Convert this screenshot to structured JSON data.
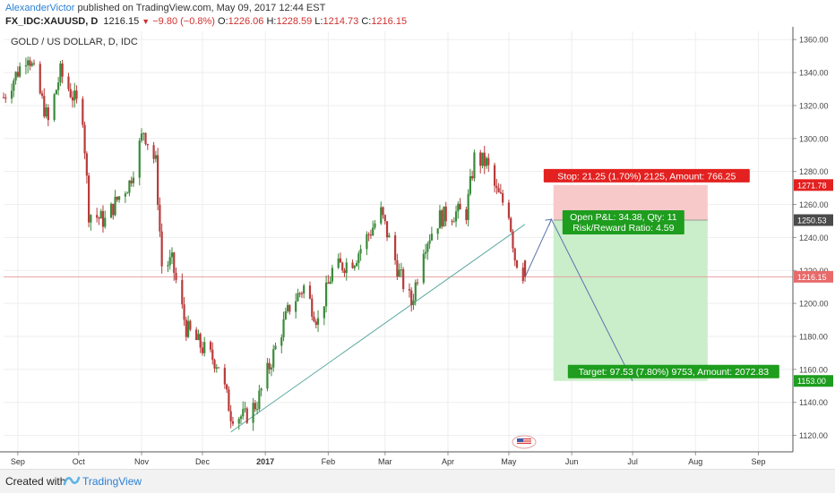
{
  "header": {
    "author": "AlexanderVictor",
    "published_text": "published on TradingView.com, May 09, 2017 12:44 EST",
    "symbol": "FX_IDC:XAUUSD, D",
    "last_price": "1216.15",
    "change": "−9.80 (−0.8%)",
    "open_label": "O:",
    "open_value": "1226.06",
    "high_label": "H:",
    "high_value": "1228.59",
    "low_label": "L:",
    "low_value": "1214.73",
    "close_label": "C:",
    "close_value": "1216.15"
  },
  "footer": {
    "created_with": "Created with",
    "brand": "TradingView"
  },
  "colors": {
    "up": "#3a8a3a",
    "down": "#b83b3b",
    "trendline": "#5aa89e",
    "arrow": "#5d74ad",
    "stop_zone": "#f8c9c9",
    "target_zone": "#c9eec9",
    "stop_label": "#e32120",
    "target_label": "#1e9d1e",
    "price_line": "#e9a0a0",
    "grid": "#eeeeee"
  },
  "chart_data": {
    "type": "candlestick",
    "title": "GOLD / US DOLLAR, D, IDC",
    "ylim": [
      1110,
      1365
    ],
    "y_ticks": [
      1120,
      1140,
      1160,
      1180,
      1200,
      1220,
      1240,
      1260,
      1280,
      1300,
      1320,
      1340,
      1360
    ],
    "y_tick_labels": [
      "1120.00",
      "1140.00",
      "1160.00",
      "1180.00",
      "1200.00",
      "1220.00",
      "1240.00",
      "1260.00",
      "1280.00",
      "1300.00",
      "1320.00",
      "1340.00",
      "1360.00"
    ],
    "x_labels": [
      "Sep",
      "Oct",
      "Nov",
      "Dec",
      "2017",
      "Feb",
      "Mar",
      "Apr",
      "May",
      "Jun",
      "Jul",
      "Aug",
      "Sep"
    ],
    "x_label_bold": "2017",
    "anchors": [
      {
        "date": "2016-08-25",
        "price": 1325
      },
      {
        "date": "2016-09-06",
        "price": 1352
      },
      {
        "date": "2016-09-16",
        "price": 1310
      },
      {
        "date": "2016-09-22",
        "price": 1340
      },
      {
        "date": "2016-10-03",
        "price": 1314
      },
      {
        "date": "2016-10-06",
        "price": 1255
      },
      {
        "date": "2016-10-14",
        "price": 1250
      },
      {
        "date": "2016-10-21",
        "price": 1265
      },
      {
        "date": "2016-10-26",
        "price": 1273
      },
      {
        "date": "2016-11-02",
        "price": 1305
      },
      {
        "date": "2016-11-08",
        "price": 1285
      },
      {
        "date": "2016-11-11",
        "price": 1223
      },
      {
        "date": "2016-11-16",
        "price": 1225
      },
      {
        "date": "2016-11-23",
        "price": 1185
      },
      {
        "date": "2016-12-01",
        "price": 1173
      },
      {
        "date": "2016-12-09",
        "price": 1163
      },
      {
        "date": "2016-12-15",
        "price": 1133
      },
      {
        "date": "2016-12-22",
        "price": 1131
      },
      {
        "date": "2016-12-28",
        "price": 1140
      },
      {
        "date": "2017-01-06",
        "price": 1173
      },
      {
        "date": "2017-01-13",
        "price": 1198
      },
      {
        "date": "2017-01-20",
        "price": 1210
      },
      {
        "date": "2017-01-27",
        "price": 1189
      },
      {
        "date": "2017-02-03",
        "price": 1220
      },
      {
        "date": "2017-02-14",
        "price": 1227
      },
      {
        "date": "2017-02-27",
        "price": 1255
      },
      {
        "date": "2017-03-08",
        "price": 1218
      },
      {
        "date": "2017-03-14",
        "price": 1200
      },
      {
        "date": "2017-03-20",
        "price": 1235
      },
      {
        "date": "2017-03-28",
        "price": 1252
      },
      {
        "date": "2017-04-05",
        "price": 1255
      },
      {
        "date": "2017-04-10",
        "price": 1255
      },
      {
        "date": "2017-04-14",
        "price": 1288
      },
      {
        "date": "2017-04-20",
        "price": 1285
      },
      {
        "date": "2017-04-25",
        "price": 1267
      },
      {
        "date": "2017-05-01",
        "price": 1256
      },
      {
        "date": "2017-05-04",
        "price": 1228
      },
      {
        "date": "2017-05-09",
        "price": 1216
      }
    ],
    "trendline": [
      {
        "date": "2016-12-15",
        "price": 1122
      },
      {
        "date": "2017-05-09",
        "price": 1248
      }
    ],
    "forecast_arrow": [
      {
        "date": "2017-05-09",
        "price": 1216
      },
      {
        "date": "2017-05-22",
        "price": 1251
      },
      {
        "date": "2017-07-01",
        "price": 1153
      }
    ],
    "position": {
      "start_date": "2017-05-23",
      "end_date": "2017-08-07",
      "entry": 1250.53,
      "stop": 1271.78,
      "target": 1153.0,
      "stop_label": "Stop: 21.25 (1.70%) 2125, Amount: 766.25",
      "target_label": "Target: 97.53 (7.80%) 9753, Amount: 2072.83",
      "open_pl_label": "Open P&L: 34.38, Qty: 11",
      "risk_reward_label": "Risk/Reward Ratio: 4.59"
    },
    "price_tags": [
      {
        "value": "1271.78",
        "price": 1271.78,
        "kind": "stop"
      },
      {
        "value": "1250.53",
        "price": 1250.53,
        "kind": "entry"
      },
      {
        "value": "1216.15",
        "price": 1216.15,
        "kind": "last"
      },
      {
        "value": "1153.00",
        "price": 1153.0,
        "kind": "target"
      }
    ]
  }
}
